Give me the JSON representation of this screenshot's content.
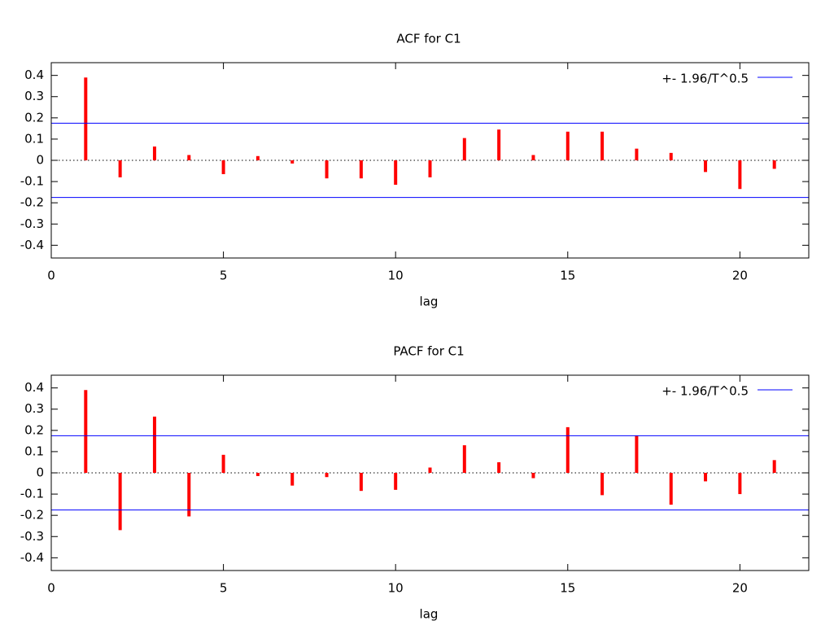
{
  "chart_data": [
    {
      "type": "stem",
      "title": "ACF for C1",
      "x_label": "lag",
      "x": [
        1,
        2,
        3,
        4,
        5,
        6,
        7,
        8,
        9,
        10,
        11,
        12,
        13,
        14,
        15,
        16,
        17,
        18,
        19,
        20,
        21
      ],
      "values": [
        0.39,
        -0.08,
        0.065,
        0.025,
        -0.065,
        0.02,
        -0.015,
        -0.085,
        -0.085,
        -0.115,
        -0.08,
        0.105,
        0.145,
        0.025,
        0.135,
        0.135,
        0.055,
        0.035,
        -0.055,
        -0.135,
        -0.04
      ],
      "color": "#ff0000",
      "bounds": {
        "name": "+- 1.96/T^0.5",
        "color": "#0000ff",
        "values": [
          0.175,
          -0.175
        ]
      },
      "xlim": [
        0,
        22
      ],
      "xticks": [
        0,
        5,
        10,
        15,
        20
      ],
      "ylim": [
        -0.46,
        0.46
      ],
      "yticks": [
        -0.4,
        -0.3,
        -0.2,
        -0.1,
        0,
        0.1,
        0.2,
        0.3,
        0.4
      ]
    },
    {
      "type": "stem",
      "title": "PACF for C1",
      "x_label": "lag",
      "x": [
        1,
        2,
        3,
        4,
        5,
        6,
        7,
        8,
        9,
        10,
        11,
        12,
        13,
        14,
        15,
        16,
        17,
        18,
        19,
        20,
        21
      ],
      "values": [
        0.39,
        -0.27,
        0.265,
        -0.205,
        0.085,
        -0.015,
        -0.06,
        -0.02,
        -0.085,
        -0.08,
        0.025,
        0.13,
        0.05,
        -0.025,
        0.215,
        -0.105,
        0.175,
        -0.15,
        -0.04,
        -0.1,
        0.06
      ],
      "color": "#ff0000",
      "bounds": {
        "name": "+- 1.96/T^0.5",
        "color": "#0000ff",
        "values": [
          0.175,
          -0.175
        ]
      },
      "xlim": [
        0,
        22
      ],
      "xticks": [
        0,
        5,
        10,
        15,
        20
      ],
      "ylim": [
        -0.46,
        0.46
      ],
      "yticks": [
        -0.4,
        -0.3,
        -0.2,
        -0.1,
        0,
        0.1,
        0.2,
        0.3,
        0.4
      ]
    }
  ]
}
